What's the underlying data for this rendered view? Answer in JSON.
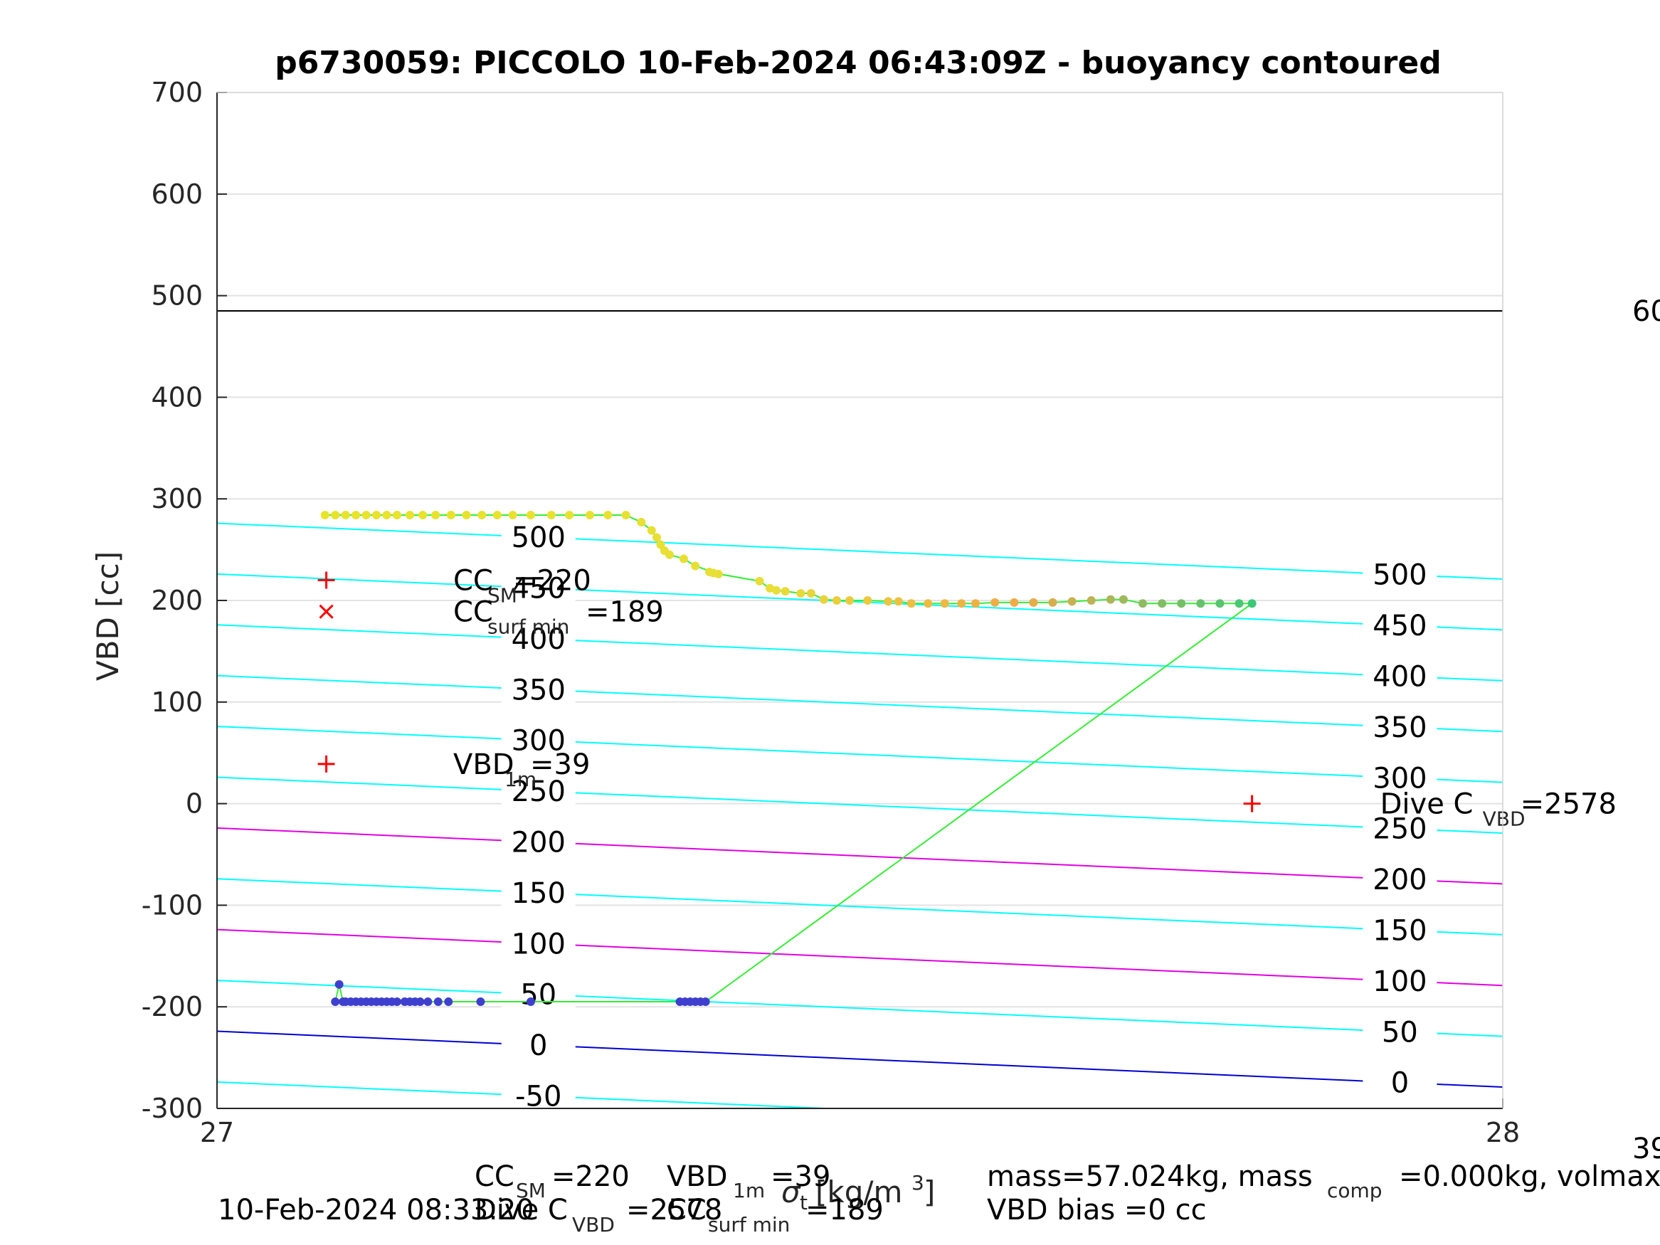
{
  "chart_data": {
    "type": "scatter",
    "title": "p6730059: PICCOLO 10-Feb-2024 06:43:09Z - buoyancy contoured",
    "ylabel": "VBD [cc]",
    "xlabel": "[kg/m",
    "xlabel_sup": "3",
    "xlabel_end": "]",
    "xlabel_symbol": "σ",
    "xlabel_symbol_sub": "t",
    "xlim": [
      27,
      28
    ],
    "ylim": [
      -300,
      700
    ],
    "xticks": [
      "27",
      "28"
    ],
    "yticks": [
      "-300",
      "-200",
      "-100",
      "0",
      "100",
      "200",
      "300",
      "400",
      "500",
      "600",
      "700"
    ],
    "grid": true,
    "hline_y": 485,
    "right_edge_labels": [
      "60",
      "39"
    ],
    "contours": {
      "left_x": 27.0,
      "right_x": 28.0,
      "levels": [
        {
          "label": "500",
          "y_left": 276,
          "y_right": 221,
          "color": "#00ffff"
        },
        {
          "label": "450",
          "y_left": 226,
          "y_right": 171,
          "color": "#00ffff"
        },
        {
          "label": "400",
          "y_left": 176,
          "y_right": 121,
          "color": "#00ffff"
        },
        {
          "label": "350",
          "y_left": 126,
          "y_right": 71,
          "color": "#00ffff"
        },
        {
          "label": "300",
          "y_left": 76,
          "y_right": 21,
          "color": "#00ffff"
        },
        {
          "label": "250",
          "y_left": 26,
          "y_right": -29,
          "color": "#00ffff"
        },
        {
          "label": "200",
          "y_left": -24,
          "y_right": -79,
          "color": "#e100e1"
        },
        {
          "label": "150",
          "y_left": -74,
          "y_right": -129,
          "color": "#00ffff"
        },
        {
          "label": "100",
          "y_left": -124,
          "y_right": -179,
          "color": "#e100e1"
        },
        {
          "label": "50",
          "y_left": -174,
          "y_right": -229,
          "color": "#00ffff"
        },
        {
          "label": "0",
          "y_left": -224,
          "y_right": -279,
          "color": "#0000d2"
        },
        {
          "label": "-50",
          "y_left": -274,
          "y_right": -329,
          "color": "#00ffff"
        }
      ],
      "left_label_x": 27.25,
      "right_label_x": 27.92
    },
    "series": [
      {
        "points_color": "gradient yellow-orange-green",
        "x": [
          27.084,
          27.092,
          27.1,
          27.108,
          27.116,
          27.124,
          27.132,
          27.14,
          27.15,
          27.16,
          27.17,
          27.182,
          27.194,
          27.206,
          27.218,
          27.23,
          27.244,
          27.26,
          27.274,
          27.29,
          27.304,
          27.318,
          27.33,
          27.338,
          27.342,
          27.345,
          27.348,
          27.352,
          27.363,
          27.372,
          27.39,
          27.383,
          27.386,
          27.422,
          27.43,
          27.435,
          27.442,
          27.454,
          27.462,
          27.472,
          27.482,
          27.492,
          27.506,
          27.522,
          27.53,
          27.54,
          27.553,
          27.566,
          27.579,
          27.59,
          27.605,
          27.62,
          27.635,
          27.65,
          27.665,
          27.68,
          27.695,
          27.705,
          27.72,
          27.735,
          27.75,
          27.765,
          27.78,
          27.795,
          27.805
        ],
        "y": [
          284,
          284,
          284,
          284,
          284,
          284,
          284,
          284,
          284,
          284,
          284,
          284,
          284,
          284,
          284,
          284,
          284,
          284,
          284,
          284,
          284,
          284,
          277,
          269,
          262,
          255,
          249,
          245,
          241,
          234,
          226,
          228,
          227,
          219,
          212,
          210,
          209,
          207,
          207,
          201,
          200,
          200,
          200,
          199,
          199,
          197,
          197,
          197,
          197,
          197,
          198,
          198,
          198,
          198,
          199,
          200,
          201,
          201,
          197,
          197,
          197,
          197,
          197,
          197,
          197
        ]
      },
      {
        "points_color": "#3f3fcf",
        "x": [
          27.092,
          27.095,
          27.098,
          27.1,
          27.104,
          27.108,
          27.112,
          27.116,
          27.12,
          27.124,
          27.128,
          27.132,
          27.136,
          27.14,
          27.146,
          27.15,
          27.154,
          27.158,
          27.164,
          27.172,
          27.18,
          27.205,
          27.244,
          27.36,
          27.364,
          27.368,
          27.372,
          27.376,
          27.38
        ],
        "y": [
          -195,
          -178,
          -195,
          -195,
          -195,
          -195,
          -195,
          -195,
          -195,
          -195,
          -195,
          -195,
          -195,
          -195,
          -195,
          -195,
          -195,
          -195,
          -195,
          -195,
          -195,
          -195,
          -195,
          -195,
          -195,
          -195,
          -195,
          -195,
          -195
        ]
      }
    ],
    "annotations": [
      {
        "marker": "+",
        "x": 27.085,
        "y": 220,
        "text": "CC",
        "sub": "SM",
        "value": "=220"
      },
      {
        "marker": "x",
        "x": 27.085,
        "y": 189,
        "text": "CC",
        "sub": "surf min",
        "value": "=189"
      },
      {
        "marker": "+",
        "x": 27.085,
        "y": 39,
        "text": "VBD",
        "sub": "1m",
        "value": "=39"
      },
      {
        "marker": "+",
        "x": 27.805,
        "y": 0,
        "text": "Dive C",
        "sub": "VBD",
        "value": "=2578"
      }
    ],
    "footer": {
      "date": "10-Feb-2024 08:33:20",
      "cc_sm": "CC",
      "cc_sm_sub": "SM",
      "cc_sm_val": "=220",
      "vbd_1m": "VBD",
      "vbd_1m_sub": "1m",
      "vbd_1m_val": "=39",
      "dive_c": "Dive C",
      "dive_c_sub": "VBD",
      "dive_c_val": "=2578",
      "cc_surf": "CC",
      "cc_surf_sub": "surf min",
      "cc_surf_val": "=189",
      "mass": "mass=57.024kg, mass",
      "mass_sub": "comp",
      "mass_val": "=0.000kg, volmax",
      "vbd_bias": "VBD bias =0 cc"
    }
  }
}
